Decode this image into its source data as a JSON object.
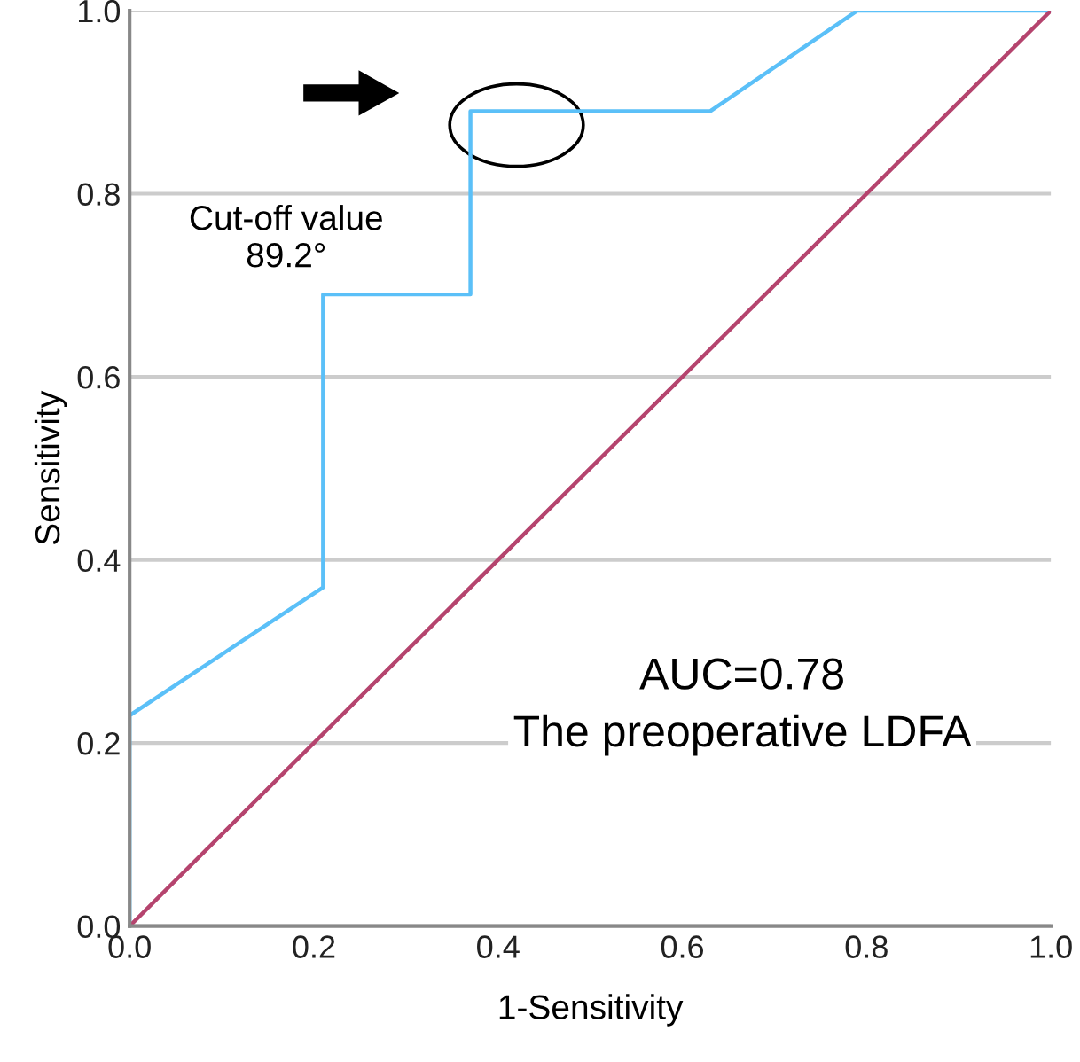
{
  "chart_data": {
    "type": "line",
    "xlabel": "1-Sensitivity",
    "ylabel": "Sensitivity",
    "series": [
      {
        "x": [
          0,
          0,
          0.21,
          0.21,
          0.37,
          0.37,
          0.63,
          0.79,
          1.0
        ],
        "values": [
          0,
          0.23,
          0.37,
          0.69,
          0.69,
          0.89,
          0.89,
          1.0,
          1.0
        ],
        "color": "#5bc0f8"
      },
      {
        "x": [
          0,
          1.0
        ],
        "values": [
          0,
          1.0
        ],
        "color": "#b5446e"
      }
    ],
    "annotations": [
      "Cut-off value\n89.2°",
      "AUC=0.78\nThe preoperative LDFA"
    ],
    "xlim": [
      0,
      1.0
    ],
    "ylim": [
      0,
      1.0
    ],
    "xticks": [
      {
        "value": 0,
        "label": "0.0"
      },
      0.2,
      0.4,
      0.6,
      0.8,
      {
        "value": 1.0,
        "label": "1.0"
      }
    ],
    "yticks": [
      {
        "value": 0,
        "label": "0.0"
      },
      0.2,
      0.4,
      0.6,
      0.8,
      {
        "value": 1.0,
        "label": "1.0"
      }
    ],
    "grid": "y",
    "marker": "none",
    "line_style": "solid"
  }
}
